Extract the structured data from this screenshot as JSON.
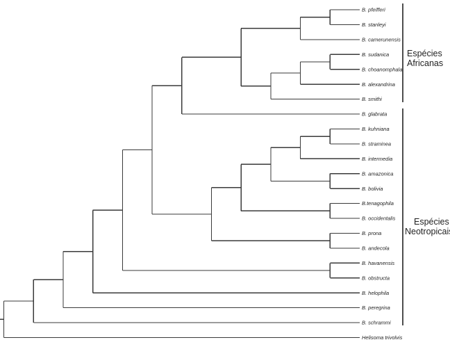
{
  "tree": {
    "children": [
      {
        "children": [
          {
            "children": [
              {
                "children": [
                  {
                    "children": [
                      {
                        "children": [
                          {
                            "children": [
                              {
                                "children": [
                                  {
                                    "children": [
                                      {
                                        "children": [
                                          {
                                            "label": "B. pfeifferi"
                                          },
                                          {
                                            "label": "B. stanleyi"
                                          }
                                        ]
                                      },
                                      {
                                        "label": "B. camerunensis"
                                      }
                                    ]
                                  },
                                  {
                                    "children": [
                                      {
                                        "children": [
                                          {
                                            "children": [
                                              {
                                                "label": "B. sudanica"
                                              },
                                              {
                                                "label": "B. choanomphala"
                                              }
                                            ]
                                          },
                                          {
                                            "label": "B. alexandrina"
                                          }
                                        ]
                                      },
                                      {
                                        "label": "B. smithi"
                                      }
                                    ]
                                  }
                                ]
                              },
                              {
                                "label": "B. glabrata"
                              }
                            ]
                          },
                          {
                            "children": [
                              {
                                "children": [
                                  {
                                    "children": [
                                      {
                                        "children": [
                                          {
                                            "children": [
                                              {
                                                "label": "B. kuhniana"
                                              },
                                              {
                                                "label": "B. straminea"
                                              }
                                            ]
                                          },
                                          {
                                            "label": "B. intermedia"
                                          }
                                        ]
                                      },
                                      {
                                        "children": [
                                          {
                                            "label": "B. amazonica"
                                          },
                                          {
                                            "label": "B. bolivia"
                                          }
                                        ]
                                      }
                                    ]
                                  },
                                  {
                                    "children": [
                                      {
                                        "label": "B.tenagophila"
                                      },
                                      {
                                        "label": "B. occidentalis"
                                      }
                                    ]
                                  }
                                ]
                              },
                              {
                                "children": [
                                  {
                                    "label": "B. prona"
                                  },
                                  {
                                    "label": "B. andecola"
                                  }
                                ]
                              }
                            ]
                          }
                        ]
                      },
                      {
                        "children": [
                          {
                            "label": "B. havanensis"
                          },
                          {
                            "label": "B. obstructa"
                          }
                        ]
                      }
                    ]
                  },
                  {
                    "label": "B. helophila"
                  }
                ]
              },
              {
                "label": "B. peregrina"
              }
            ]
          },
          {
            "label": "B. schrammi"
          }
        ]
      },
      {
        "label": "Helisoma trivolvis"
      }
    ]
  },
  "groups": {
    "african": {
      "line1": "Espécies",
      "line2": "Africanas"
    },
    "neotropical": {
      "line1": "Espécies",
      "line2": "Neotropicais"
    }
  }
}
